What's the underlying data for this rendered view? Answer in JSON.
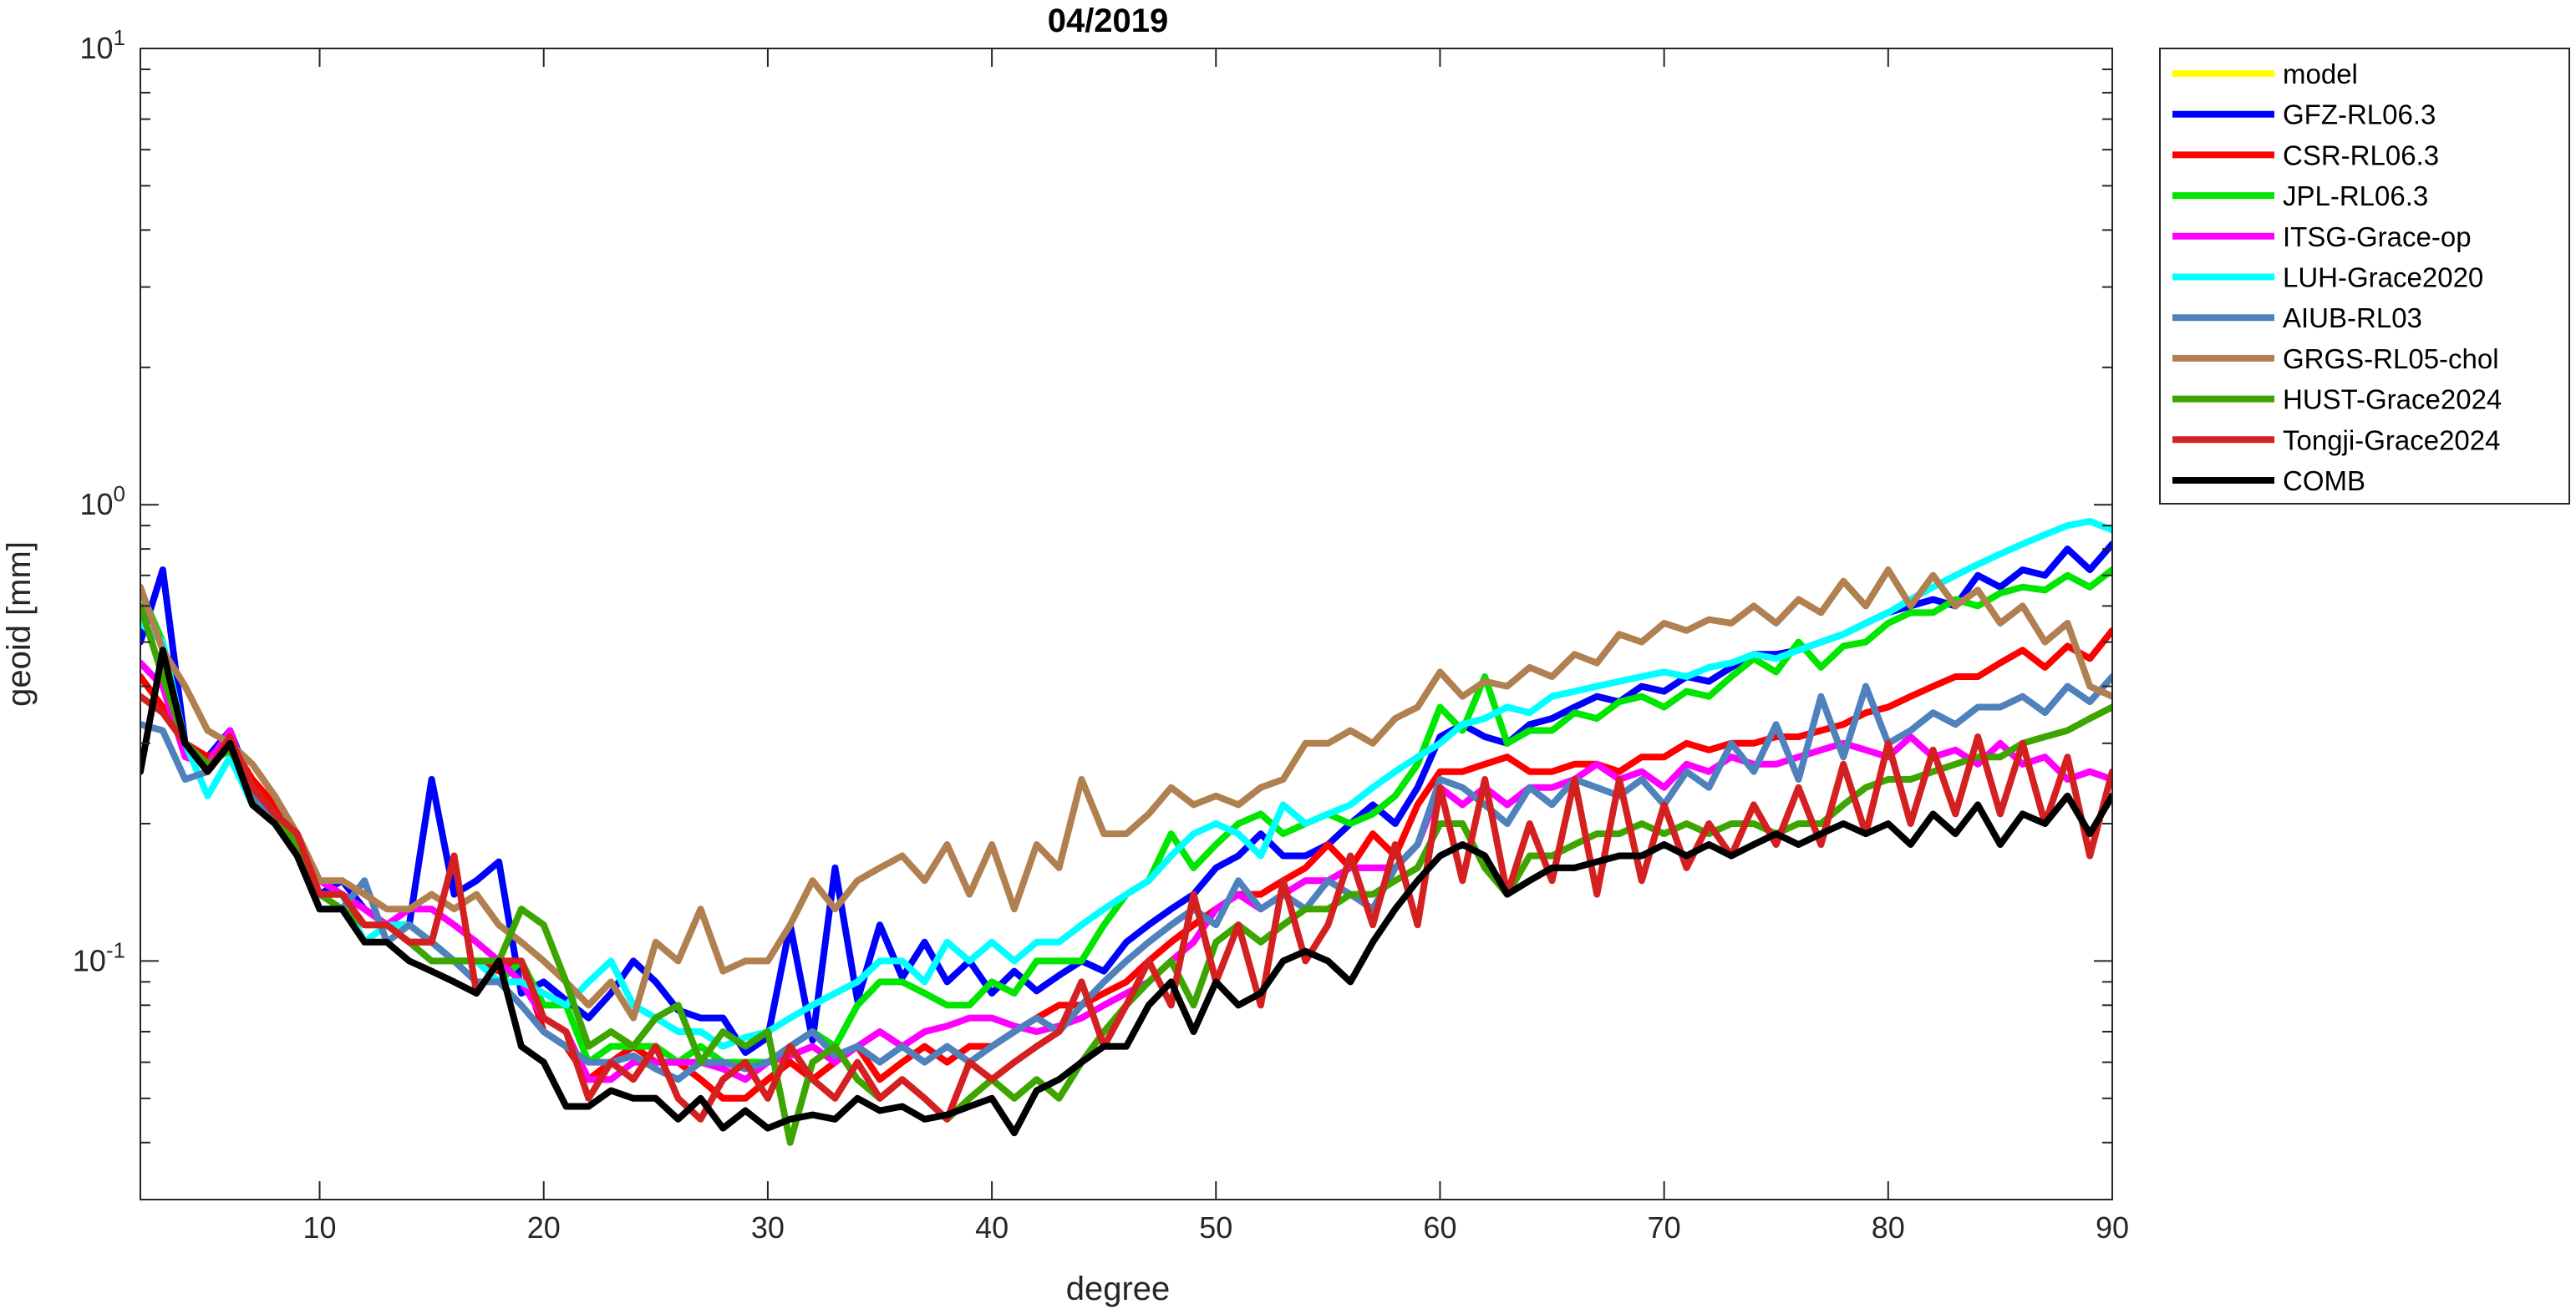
{
  "chart_data": {
    "type": "line",
    "title": "04/2019",
    "xlabel": "degree",
    "ylabel": "geoid [mm]",
    "x_scale": "linear",
    "y_scale": "log",
    "xlim": [
      2,
      90
    ],
    "ylim": [
      0.03,
      10
    ],
    "x_ticks": [
      10,
      20,
      30,
      40,
      50,
      60,
      70,
      80,
      90
    ],
    "x_tick_labels": [
      "10",
      "20",
      "30",
      "40",
      "50",
      "60",
      "70",
      "80",
      "90"
    ],
    "y_ticks": [
      {
        "value": 0.1,
        "base": "10",
        "exp": "-1"
      },
      {
        "value": 1,
        "base": "10",
        "exp": "0"
      },
      {
        "value": 10,
        "base": "10",
        "exp": "1"
      }
    ],
    "grid": false,
    "legend_position": "outside-top-right",
    "x_start": 2,
    "series": [
      {
        "name": "model",
        "color": "#FFFF00",
        "values": []
      },
      {
        "name": "GFZ-RL06.3",
        "color": "#0000FF",
        "values": [
          0.5,
          0.72,
          0.3,
          0.28,
          0.32,
          0.24,
          0.21,
          0.18,
          0.14,
          0.15,
          0.13,
          0.12,
          0.12,
          0.25,
          0.14,
          0.15,
          0.165,
          0.085,
          0.09,
          0.082,
          0.075,
          0.085,
          0.1,
          0.09,
          0.078,
          0.075,
          0.075,
          0.063,
          0.068,
          0.12,
          0.067,
          0.16,
          0.082,
          0.12,
          0.092,
          0.11,
          0.09,
          0.1,
          0.085,
          0.095,
          0.086,
          0.093,
          0.1,
          0.095,
          0.11,
          0.12,
          0.13,
          0.14,
          0.16,
          0.17,
          0.19,
          0.17,
          0.17,
          0.18,
          0.2,
          0.22,
          0.2,
          0.24,
          0.31,
          0.33,
          0.31,
          0.3,
          0.33,
          0.34,
          0.36,
          0.38,
          0.37,
          0.4,
          0.39,
          0.42,
          0.41,
          0.44,
          0.47,
          0.47,
          0.48,
          0.5,
          0.52,
          0.55,
          0.58,
          0.6,
          0.62,
          0.6,
          0.7,
          0.66,
          0.72,
          0.7,
          0.8,
          0.72,
          0.82
        ]
      },
      {
        "name": "CSR-RL06.3",
        "color": "#FF0000",
        "values": [
          0.42,
          0.36,
          0.3,
          0.28,
          0.3,
          0.25,
          0.22,
          0.19,
          0.14,
          0.14,
          0.13,
          0.12,
          0.11,
          0.11,
          0.1,
          0.1,
          0.095,
          0.1,
          0.07,
          0.065,
          0.055,
          0.06,
          0.065,
          0.06,
          0.06,
          0.055,
          0.05,
          0.05,
          0.055,
          0.06,
          0.055,
          0.06,
          0.065,
          0.055,
          0.06,
          0.065,
          0.06,
          0.065,
          0.065,
          0.07,
          0.075,
          0.08,
          0.08,
          0.085,
          0.09,
          0.1,
          0.11,
          0.12,
          0.13,
          0.14,
          0.14,
          0.15,
          0.16,
          0.18,
          0.16,
          0.19,
          0.17,
          0.22,
          0.26,
          0.26,
          0.27,
          0.28,
          0.26,
          0.26,
          0.27,
          0.27,
          0.26,
          0.28,
          0.28,
          0.3,
          0.29,
          0.3,
          0.3,
          0.31,
          0.31,
          0.32,
          0.33,
          0.35,
          0.36,
          0.38,
          0.4,
          0.42,
          0.42,
          0.45,
          0.48,
          0.44,
          0.49,
          0.46,
          0.53
        ]
      },
      {
        "name": "JPL-RL06.3",
        "color": "#00E600",
        "values": [
          0.65,
          0.5,
          0.3,
          0.27,
          0.31,
          0.24,
          0.21,
          0.19,
          0.14,
          0.14,
          0.13,
          0.12,
          0.12,
          0.11,
          0.1,
          0.1,
          0.09,
          0.1,
          0.08,
          0.08,
          0.06,
          0.065,
          0.065,
          0.065,
          0.06,
          0.065,
          0.06,
          0.06,
          0.06,
          0.065,
          0.07,
          0.065,
          0.08,
          0.09,
          0.09,
          0.085,
          0.08,
          0.08,
          0.09,
          0.085,
          0.1,
          0.1,
          0.1,
          0.12,
          0.14,
          0.15,
          0.19,
          0.16,
          0.18,
          0.2,
          0.21,
          0.19,
          0.2,
          0.21,
          0.2,
          0.21,
          0.23,
          0.27,
          0.36,
          0.32,
          0.42,
          0.3,
          0.32,
          0.32,
          0.35,
          0.34,
          0.37,
          0.38,
          0.36,
          0.39,
          0.38,
          0.42,
          0.46,
          0.43,
          0.5,
          0.44,
          0.49,
          0.5,
          0.55,
          0.58,
          0.58,
          0.62,
          0.6,
          0.64,
          0.66,
          0.65,
          0.7,
          0.66,
          0.72
        ]
      },
      {
        "name": "ITSG-Grace-op",
        "color": "#FF00FF",
        "values": [
          0.45,
          0.4,
          0.28,
          0.27,
          0.32,
          0.23,
          0.21,
          0.19,
          0.15,
          0.14,
          0.13,
          0.12,
          0.13,
          0.13,
          0.12,
          0.11,
          0.1,
          0.09,
          0.075,
          0.07,
          0.055,
          0.055,
          0.06,
          0.06,
          0.06,
          0.06,
          0.058,
          0.055,
          0.06,
          0.062,
          0.065,
          0.06,
          0.065,
          0.07,
          0.065,
          0.07,
          0.072,
          0.075,
          0.075,
          0.072,
          0.07,
          0.072,
          0.075,
          0.08,
          0.085,
          0.09,
          0.1,
          0.11,
          0.13,
          0.14,
          0.13,
          0.14,
          0.15,
          0.15,
          0.16,
          0.16,
          0.16,
          0.18,
          0.24,
          0.22,
          0.24,
          0.22,
          0.24,
          0.24,
          0.25,
          0.27,
          0.25,
          0.26,
          0.24,
          0.27,
          0.26,
          0.28,
          0.27,
          0.27,
          0.28,
          0.29,
          0.3,
          0.29,
          0.28,
          0.31,
          0.28,
          0.29,
          0.27,
          0.3,
          0.27,
          0.28,
          0.25,
          0.26,
          0.25
        ]
      },
      {
        "name": "LUH-Grace2020",
        "color": "#00FFFF",
        "values": [
          0.55,
          0.5,
          0.3,
          0.23,
          0.28,
          0.22,
          0.2,
          0.18,
          0.14,
          0.14,
          0.11,
          0.12,
          0.12,
          0.11,
          0.1,
          0.1,
          0.09,
          0.09,
          0.085,
          0.08,
          0.09,
          0.1,
          0.08,
          0.075,
          0.07,
          0.07,
          0.065,
          0.068,
          0.07,
          0.075,
          0.08,
          0.085,
          0.09,
          0.1,
          0.1,
          0.09,
          0.11,
          0.1,
          0.11,
          0.1,
          0.11,
          0.11,
          0.12,
          0.13,
          0.14,
          0.15,
          0.17,
          0.19,
          0.2,
          0.19,
          0.17,
          0.22,
          0.2,
          0.21,
          0.22,
          0.24,
          0.26,
          0.28,
          0.3,
          0.33,
          0.34,
          0.36,
          0.35,
          0.38,
          0.39,
          0.4,
          0.41,
          0.42,
          0.43,
          0.42,
          0.44,
          0.45,
          0.47,
          0.46,
          0.48,
          0.5,
          0.52,
          0.55,
          0.58,
          0.62,
          0.66,
          0.7,
          0.74,
          0.78,
          0.82,
          0.86,
          0.9,
          0.92,
          0.88
        ]
      },
      {
        "name": "AIUB-RL03",
        "color": "#4F81BD",
        "values": [
          0.33,
          0.32,
          0.25,
          0.26,
          0.3,
          0.23,
          0.2,
          0.18,
          0.13,
          0.13,
          0.15,
          0.11,
          0.12,
          0.11,
          0.1,
          0.09,
          0.09,
          0.08,
          0.07,
          0.065,
          0.06,
          0.06,
          0.062,
          0.058,
          0.055,
          0.06,
          0.06,
          0.058,
          0.06,
          0.065,
          0.07,
          0.062,
          0.065,
          0.06,
          0.065,
          0.06,
          0.065,
          0.06,
          0.065,
          0.07,
          0.075,
          0.07,
          0.08,
          0.09,
          0.1,
          0.11,
          0.12,
          0.13,
          0.12,
          0.15,
          0.13,
          0.14,
          0.13,
          0.15,
          0.14,
          0.13,
          0.16,
          0.18,
          0.25,
          0.24,
          0.22,
          0.2,
          0.24,
          0.22,
          0.25,
          0.24,
          0.23,
          0.25,
          0.22,
          0.26,
          0.24,
          0.3,
          0.26,
          0.33,
          0.25,
          0.38,
          0.28,
          0.4,
          0.3,
          0.32,
          0.35,
          0.33,
          0.36,
          0.36,
          0.38,
          0.35,
          0.4,
          0.37,
          0.42
        ]
      },
      {
        "name": "GRGS-RL05-chol",
        "color": "#B08050",
        "values": [
          0.66,
          0.48,
          0.4,
          0.32,
          0.3,
          0.27,
          0.23,
          0.19,
          0.15,
          0.15,
          0.14,
          0.13,
          0.13,
          0.14,
          0.13,
          0.14,
          0.12,
          0.11,
          0.1,
          0.09,
          0.08,
          0.09,
          0.075,
          0.11,
          0.1,
          0.13,
          0.095,
          0.1,
          0.1,
          0.12,
          0.15,
          0.13,
          0.15,
          0.16,
          0.17,
          0.15,
          0.18,
          0.14,
          0.18,
          0.13,
          0.18,
          0.16,
          0.25,
          0.19,
          0.19,
          0.21,
          0.24,
          0.22,
          0.23,
          0.22,
          0.24,
          0.25,
          0.3,
          0.3,
          0.32,
          0.3,
          0.34,
          0.36,
          0.43,
          0.38,
          0.41,
          0.4,
          0.44,
          0.42,
          0.47,
          0.45,
          0.52,
          0.5,
          0.55,
          0.53,
          0.56,
          0.55,
          0.6,
          0.55,
          0.62,
          0.58,
          0.68,
          0.6,
          0.72,
          0.6,
          0.7,
          0.6,
          0.65,
          0.55,
          0.6,
          0.5,
          0.55,
          0.4,
          0.38
        ]
      },
      {
        "name": "HUST-Grace2024",
        "color": "#3DA500",
        "values": [
          0.6,
          0.42,
          0.3,
          0.27,
          0.29,
          0.24,
          0.21,
          0.18,
          0.14,
          0.13,
          0.12,
          0.12,
          0.11,
          0.1,
          0.1,
          0.1,
          0.1,
          0.13,
          0.12,
          0.09,
          0.065,
          0.07,
          0.065,
          0.075,
          0.08,
          0.06,
          0.07,
          0.065,
          0.07,
          0.04,
          0.06,
          0.065,
          0.055,
          0.05,
          0.055,
          0.05,
          0.045,
          0.05,
          0.055,
          0.05,
          0.055,
          0.05,
          0.06,
          0.07,
          0.08,
          0.09,
          0.1,
          0.08,
          0.11,
          0.12,
          0.11,
          0.12,
          0.13,
          0.13,
          0.14,
          0.14,
          0.15,
          0.16,
          0.2,
          0.2,
          0.16,
          0.14,
          0.17,
          0.17,
          0.18,
          0.19,
          0.19,
          0.2,
          0.19,
          0.2,
          0.19,
          0.2,
          0.2,
          0.19,
          0.2,
          0.2,
          0.22,
          0.24,
          0.25,
          0.25,
          0.26,
          0.27,
          0.28,
          0.28,
          0.3,
          0.31,
          0.32,
          0.34,
          0.36
        ]
      },
      {
        "name": "Tongji-Grace2024",
        "color": "#D42020",
        "values": [
          0.38,
          0.35,
          0.3,
          0.26,
          0.31,
          0.24,
          0.21,
          0.19,
          0.14,
          0.14,
          0.12,
          0.12,
          0.11,
          0.11,
          0.17,
          0.085,
          0.1,
          0.1,
          0.075,
          0.07,
          0.05,
          0.06,
          0.055,
          0.065,
          0.05,
          0.045,
          0.055,
          0.06,
          0.05,
          0.065,
          0.055,
          0.05,
          0.06,
          0.05,
          0.055,
          0.05,
          0.045,
          0.06,
          0.055,
          0.06,
          0.065,
          0.07,
          0.09,
          0.065,
          0.08,
          0.1,
          0.08,
          0.14,
          0.09,
          0.12,
          0.08,
          0.15,
          0.1,
          0.12,
          0.17,
          0.12,
          0.18,
          0.12,
          0.24,
          0.15,
          0.25,
          0.14,
          0.2,
          0.15,
          0.25,
          0.14,
          0.25,
          0.15,
          0.22,
          0.16,
          0.2,
          0.17,
          0.22,
          0.18,
          0.24,
          0.18,
          0.27,
          0.19,
          0.3,
          0.2,
          0.29,
          0.21,
          0.31,
          0.21,
          0.3,
          0.2,
          0.28,
          0.17,
          0.26
        ]
      },
      {
        "name": "COMB",
        "color": "#000000",
        "values": [
          0.26,
          0.48,
          0.3,
          0.26,
          0.3,
          0.22,
          0.2,
          0.17,
          0.13,
          0.13,
          0.11,
          0.11,
          0.1,
          0.095,
          0.09,
          0.085,
          0.1,
          0.065,
          0.06,
          0.048,
          0.048,
          0.052,
          0.05,
          0.05,
          0.045,
          0.05,
          0.043,
          0.047,
          0.043,
          0.045,
          0.046,
          0.045,
          0.05,
          0.047,
          0.048,
          0.045,
          0.046,
          0.048,
          0.05,
          0.042,
          0.052,
          0.055,
          0.06,
          0.065,
          0.065,
          0.08,
          0.09,
          0.07,
          0.09,
          0.08,
          0.085,
          0.1,
          0.105,
          0.1,
          0.09,
          0.11,
          0.13,
          0.15,
          0.17,
          0.18,
          0.17,
          0.14,
          0.15,
          0.16,
          0.16,
          0.165,
          0.17,
          0.17,
          0.18,
          0.17,
          0.18,
          0.17,
          0.18,
          0.19,
          0.18,
          0.19,
          0.2,
          0.19,
          0.2,
          0.18,
          0.21,
          0.19,
          0.22,
          0.18,
          0.21,
          0.2,
          0.23,
          0.19,
          0.23
        ]
      }
    ]
  }
}
